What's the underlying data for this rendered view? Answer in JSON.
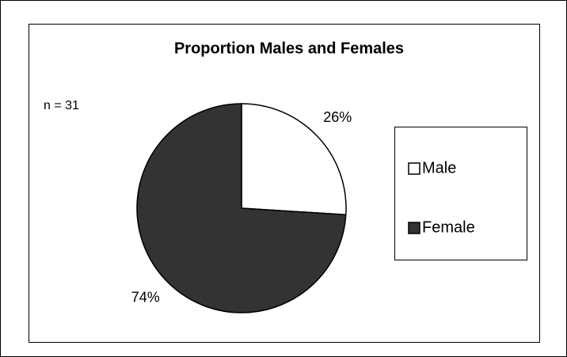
{
  "chart_data": {
    "type": "pie",
    "title": "Proportion Males and Females",
    "annotation": "n = 31",
    "categories": [
      "Male",
      "Female"
    ],
    "values": [
      26,
      74
    ],
    "value_labels": [
      "26%",
      "74%"
    ],
    "colors": [
      "#ffffff",
      "#333333"
    ],
    "legend": "right"
  }
}
